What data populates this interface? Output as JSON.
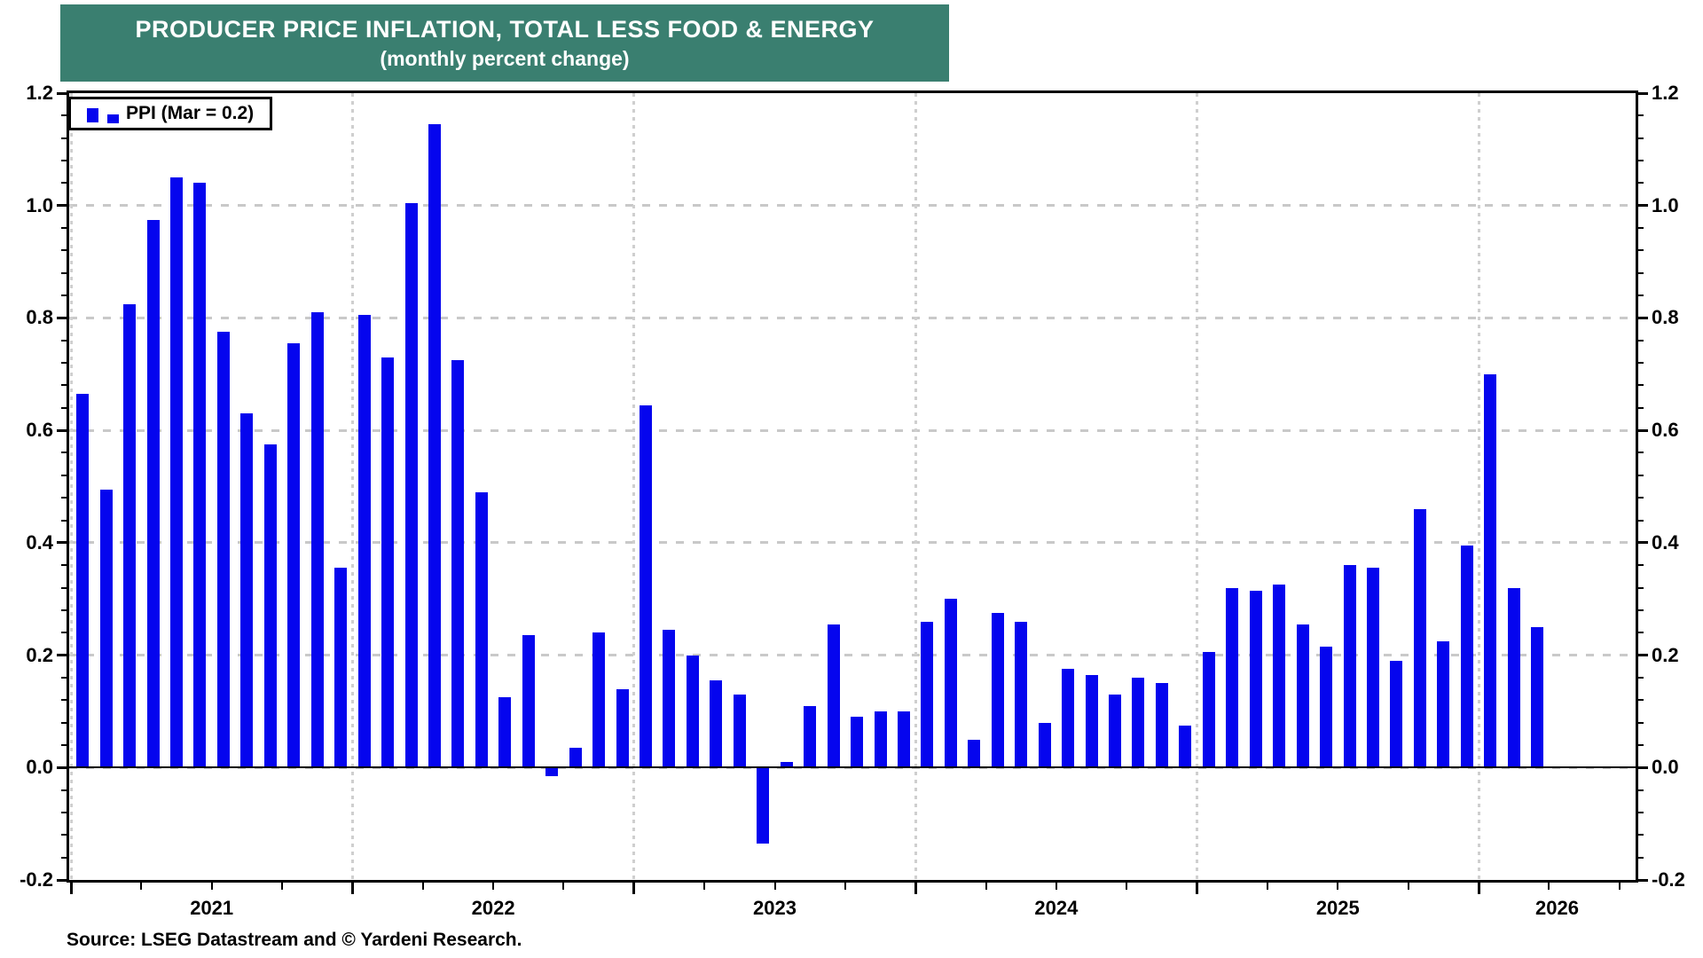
{
  "header": {
    "title": "PRODUCER PRICE INFLATION, TOTAL LESS FOOD & ENERGY",
    "subtitle": "(monthly percent change)"
  },
  "legend": {
    "label": "PPI (Mar = 0.2)"
  },
  "footer": {
    "source": "Source: LSEG Datastream and © Yardeni Research."
  },
  "colors": {
    "bar": "#0505ee",
    "title_bg": "#3a7f70",
    "title_text": "#ffffff",
    "grid": "#c9c9c9",
    "axis": "#000000"
  },
  "chart_data": {
    "type": "bar",
    "title": "PRODUCER PRICE INFLATION, TOTAL LESS FOOD & ENERGY",
    "subtitle": "(monthly percent change)",
    "series_name": "PPI",
    "latest_point_label": "Mar = 0.2",
    "start_year": 2021,
    "start_month": 1,
    "values": [
      0.665,
      0.495,
      0.825,
      0.975,
      1.05,
      1.04,
      0.775,
      0.63,
      0.575,
      0.755,
      0.81,
      0.355,
      0.805,
      0.73,
      1.005,
      1.145,
      0.725,
      0.49,
      0.125,
      0.235,
      -0.015,
      0.035,
      0.24,
      0.14,
      0.645,
      0.245,
      0.2,
      0.155,
      0.13,
      -0.135,
      0.01,
      0.11,
      0.255,
      0.09,
      0.1,
      0.1,
      0.26,
      0.3,
      0.05,
      0.275,
      0.26,
      0.08,
      0.175,
      0.165,
      0.13,
      0.16,
      0.15,
      0.075,
      0.205,
      0.32,
      0.315,
      0.325,
      0.255,
      0.215,
      0.36,
      0.355,
      0.19,
      0.46,
      0.225,
      0.395,
      0.7,
      0.32,
      0.25
    ],
    "ylim": [
      -0.2,
      1.2
    ],
    "y_tick_step": 0.2,
    "y_minor_tick_step": 0.04,
    "y_tick_labels": [
      "-0.2",
      "0.0",
      "0.2",
      "0.4",
      "0.6",
      "0.8",
      "1.0",
      "1.2"
    ],
    "x_year_labels": [
      "2021",
      "2022",
      "2023",
      "2024",
      "2025",
      "2026"
    ],
    "x_minor_tick": "quarterly",
    "grid": true,
    "legend_position": "top-left",
    "axis_labels_both_sides": true
  }
}
